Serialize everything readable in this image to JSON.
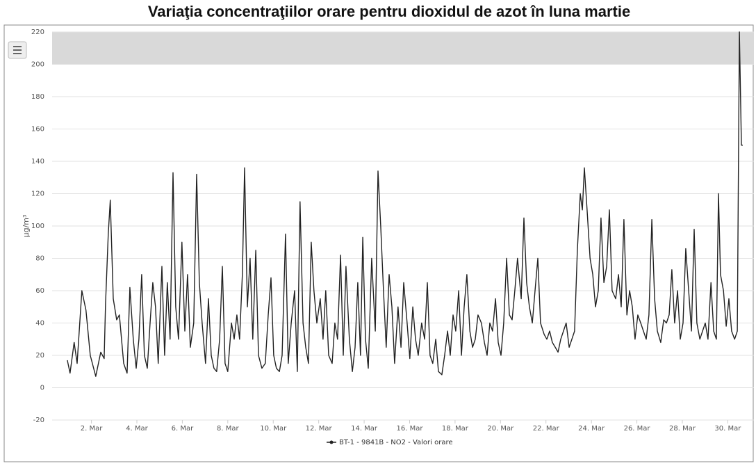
{
  "chart_data": {
    "type": "line",
    "title": "Variaţia concentraţiilor orare pentru dioxidul de azot în luna martie",
    "y_label": "µg/m³",
    "legend_position": "bottom",
    "grid": true,
    "plot_band": {
      "from": 200,
      "to": 220,
      "color": "#d9d9d9"
    },
    "xlim": [
      0.27,
      31.15
    ],
    "ylim": [
      -20,
      220
    ],
    "yticks": [
      -20,
      0,
      20,
      40,
      60,
      80,
      100,
      120,
      140,
      160,
      180,
      200,
      220
    ],
    "xticks": [
      {
        "value": 2,
        "label": "2. Mar"
      },
      {
        "value": 4,
        "label": "4. Mar"
      },
      {
        "value": 6,
        "label": "6. Mar"
      },
      {
        "value": 8,
        "label": "8. Mar"
      },
      {
        "value": 10,
        "label": "10. Mar"
      },
      {
        "value": 12,
        "label": "12. Mar"
      },
      {
        "value": 14,
        "label": "14. Mar"
      },
      {
        "value": 16,
        "label": "16. Mar"
      },
      {
        "value": 18,
        "label": "18. Mar"
      },
      {
        "value": 20,
        "label": "20. Mar"
      },
      {
        "value": 22,
        "label": "22. Mar"
      },
      {
        "value": 24,
        "label": "24. Mar"
      },
      {
        "value": 26,
        "label": "26. Mar"
      },
      {
        "value": 28,
        "label": "28. Mar"
      },
      {
        "value": 30,
        "label": "30. Mar"
      }
    ],
    "x": [
      0.94,
      1.06,
      1.24,
      1.37,
      1.58,
      1.76,
      1.95,
      2.19,
      2.41,
      2.56,
      2.62,
      2.74,
      2.83,
      2.96,
      3.11,
      3.23,
      3.42,
      3.57,
      3.69,
      3.84,
      3.97,
      4.09,
      4.21,
      4.33,
      4.46,
      4.58,
      4.7,
      4.82,
      4.94,
      5.1,
      5.22,
      5.34,
      5.46,
      5.59,
      5.71,
      5.83,
      5.98,
      6.11,
      6.23,
      6.35,
      6.5,
      6.63,
      6.75,
      6.87,
      7.02,
      7.15,
      7.27,
      7.39,
      7.51,
      7.64,
      7.76,
      7.88,
      8.0,
      8.16,
      8.28,
      8.4,
      8.52,
      8.64,
      8.74,
      8.86,
      8.98,
      9.1,
      9.23,
      9.35,
      9.5,
      9.65,
      9.78,
      9.9,
      10.02,
      10.14,
      10.27,
      10.39,
      10.54,
      10.66,
      10.79,
      10.94,
      11.06,
      11.18,
      11.31,
      11.43,
      11.55,
      11.67,
      11.79,
      11.92,
      12.07,
      12.19,
      12.31,
      12.44,
      12.59,
      12.71,
      12.83,
      12.96,
      13.08,
      13.2,
      13.35,
      13.48,
      13.6,
      13.72,
      13.84,
      13.94,
      14.06,
      14.18,
      14.33,
      14.49,
      14.61,
      14.73,
      14.85,
      14.97,
      15.1,
      15.22,
      15.34,
      15.49,
      15.62,
      15.74,
      15.89,
      16.01,
      16.14,
      16.26,
      16.38,
      16.53,
      16.66,
      16.78,
      16.9,
      17.02,
      17.15,
      17.27,
      17.42,
      17.54,
      17.67,
      17.79,
      17.91,
      18.03,
      18.16,
      18.28,
      18.4,
      18.52,
      18.65,
      18.77,
      18.89,
      19.01,
      19.16,
      19.29,
      19.41,
      19.53,
      19.65,
      19.78,
      19.9,
      20.02,
      20.14,
      20.27,
      20.39,
      20.51,
      20.63,
      20.75,
      20.91,
      21.03,
      21.15,
      21.27,
      21.4,
      21.52,
      21.64,
      21.76,
      21.92,
      22.04,
      22.16,
      22.28,
      22.41,
      22.53,
      22.65,
      22.77,
      22.89,
      23.02,
      23.14,
      23.26,
      23.38,
      23.51,
      23.6,
      23.69,
      23.81,
      23.94,
      24.06,
      24.18,
      24.3,
      24.42,
      24.55,
      24.67,
      24.79,
      24.91,
      25.07,
      25.19,
      25.31,
      25.43,
      25.56,
      25.68,
      25.8,
      25.92,
      26.04,
      26.17,
      26.29,
      26.41,
      26.53,
      26.66,
      26.78,
      26.9,
      27.05,
      27.18,
      27.3,
      27.42,
      27.54,
      27.66,
      27.79,
      27.91,
      28.03,
      28.15,
      28.28,
      28.4,
      28.52,
      28.64,
      28.77,
      28.89,
      29.01,
      29.13,
      29.26,
      29.38,
      29.5,
      29.59,
      29.68,
      29.81,
      29.93,
      30.05,
      30.17,
      30.3,
      30.42,
      30.51,
      30.6,
      30.66
    ],
    "series": [
      {
        "name": "BT-1 - 9841B - NO2 - Valori orare",
        "color": "#222222",
        "values": [
          17,
          9,
          28,
          15,
          60,
          48,
          20,
          7,
          22,
          18,
          52,
          95,
          116,
          55,
          42,
          45,
          15,
          9,
          62,
          30,
          12,
          30,
          70,
          20,
          12,
          40,
          65,
          50,
          15,
          75,
          20,
          65,
          30,
          133,
          50,
          30,
          90,
          35,
          70,
          25,
          40,
          132,
          65,
          40,
          15,
          55,
          20,
          12,
          10,
          30,
          75,
          15,
          10,
          40,
          30,
          45,
          30,
          70,
          136,
          50,
          80,
          30,
          85,
          20,
          12,
          15,
          45,
          68,
          20,
          12,
          10,
          20,
          95,
          15,
          40,
          60,
          10,
          115,
          40,
          25,
          15,
          90,
          60,
          40,
          55,
          30,
          60,
          20,
          15,
          40,
          30,
          82,
          20,
          75,
          30,
          10,
          25,
          65,
          20,
          93,
          30,
          12,
          80,
          35,
          134,
          100,
          60,
          25,
          70,
          50,
          15,
          50,
          25,
          65,
          40,
          18,
          50,
          30,
          20,
          40,
          30,
          65,
          20,
          15,
          30,
          10,
          8,
          20,
          35,
          20,
          45,
          35,
          60,
          20,
          50,
          70,
          35,
          25,
          30,
          45,
          40,
          28,
          20,
          40,
          35,
          55,
          28,
          20,
          40,
          80,
          45,
          42,
          60,
          80,
          55,
          105,
          65,
          50,
          40,
          60,
          80,
          40,
          33,
          30,
          35,
          28,
          25,
          22,
          30,
          35,
          40,
          25,
          30,
          35,
          85,
          120,
          110,
          136,
          110,
          80,
          70,
          50,
          60,
          105,
          65,
          75,
          110,
          60,
          55,
          70,
          50,
          104,
          45,
          60,
          50,
          30,
          45,
          40,
          35,
          30,
          45,
          104,
          55,
          35,
          28,
          42,
          40,
          45,
          73,
          40,
          60,
          30,
          40,
          86,
          60,
          35,
          98,
          40,
          30,
          35,
          40,
          30,
          65,
          35,
          30,
          120,
          70,
          60,
          38,
          55,
          35,
          30,
          35,
          220,
          150,
          150
        ]
      }
    ]
  }
}
